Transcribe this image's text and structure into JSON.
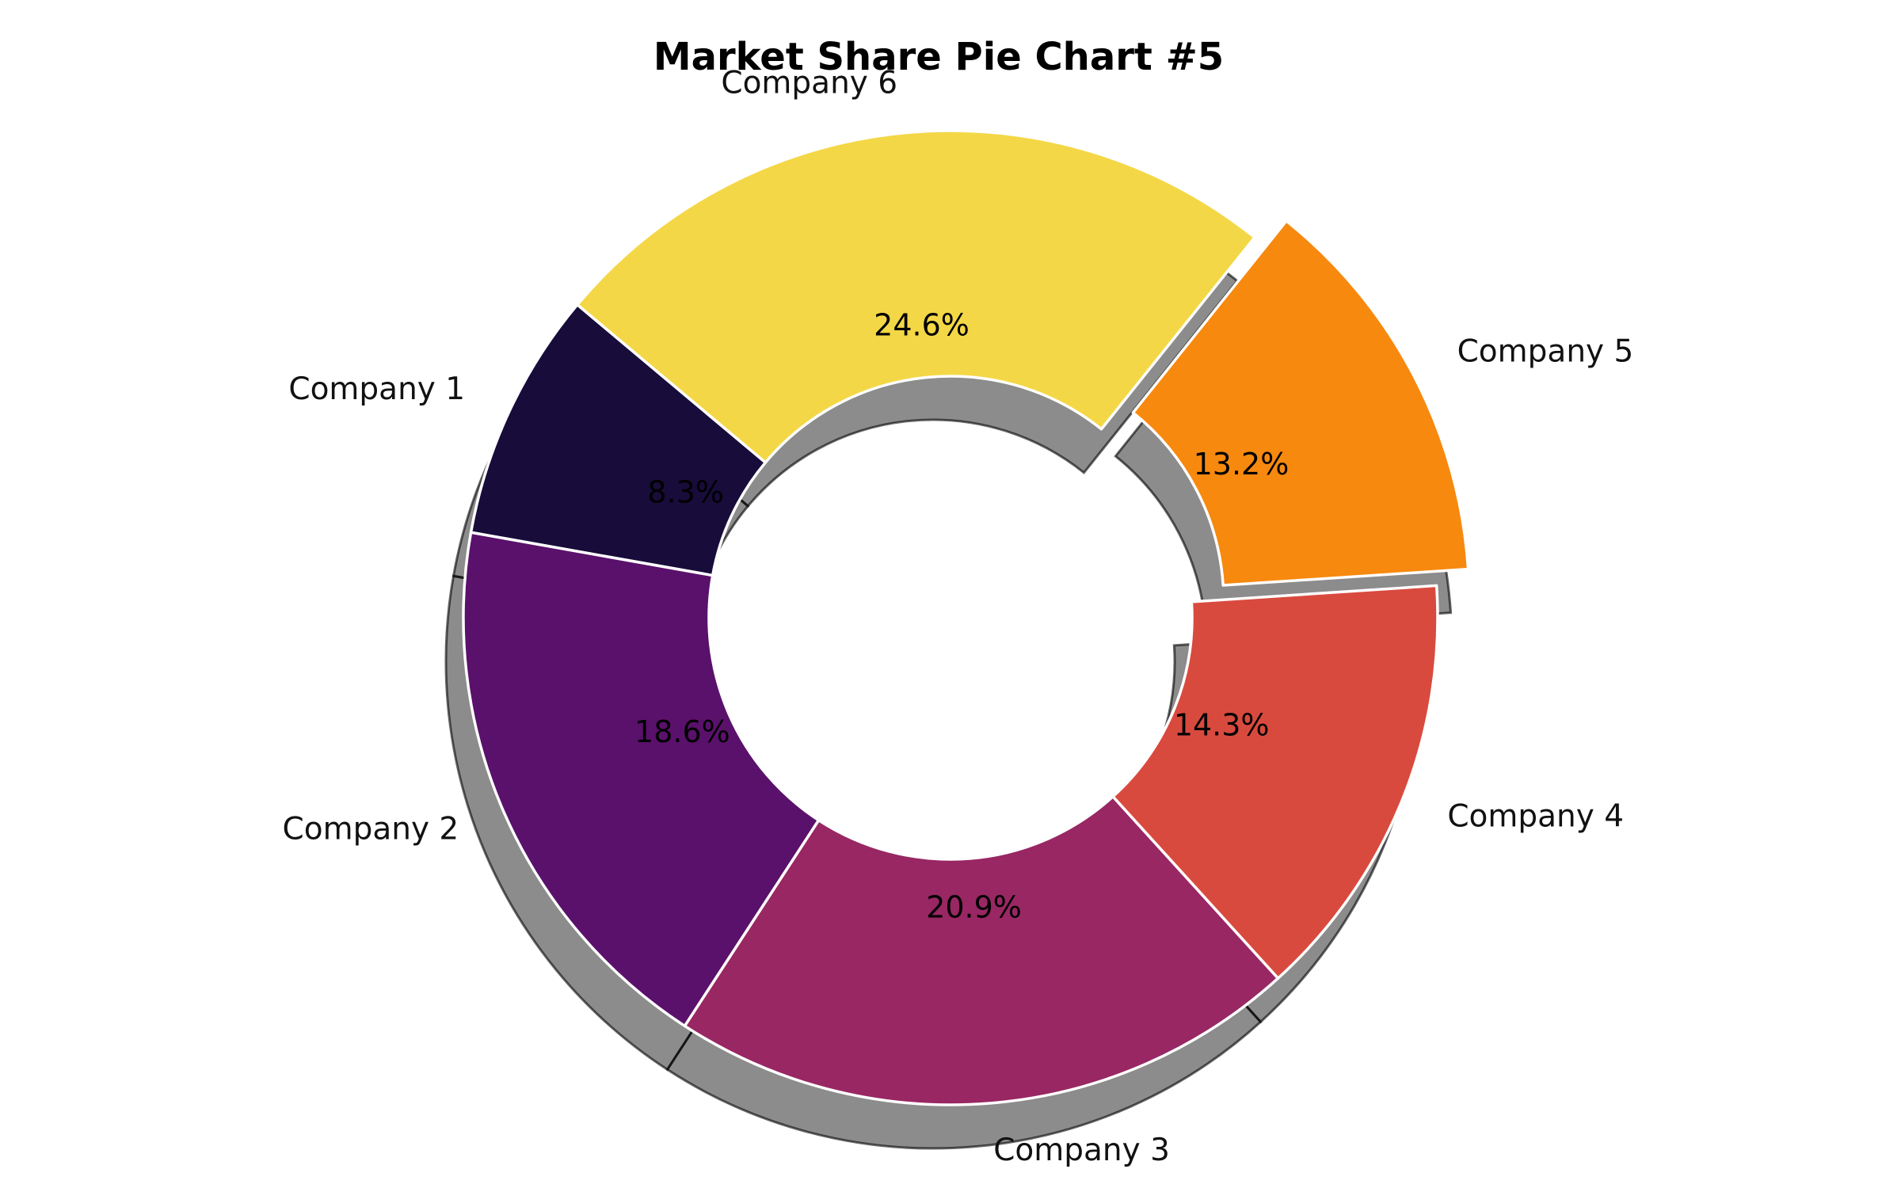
{
  "chart_data": {
    "type": "pie",
    "variant": "donut",
    "title": "Market Share Pie Chart #5",
    "categories": [
      "Company 1",
      "Company 2",
      "Company 3",
      "Company 4",
      "Company 5",
      "Company 6"
    ],
    "values": [
      8.3,
      18.6,
      20.9,
      14.3,
      13.2,
      24.6
    ],
    "percent_labels": [
      "8.3%",
      "18.6%",
      "20.9%",
      "14.3%",
      "13.2%",
      "24.6%"
    ],
    "colors": [
      "#170c3a",
      "#5a116b",
      "#982763",
      "#d94a3e",
      "#f7890f",
      "#f4d746"
    ],
    "exploded": [
      false,
      false,
      false,
      false,
      true,
      false
    ],
    "shadow": true,
    "legend": "none"
  }
}
